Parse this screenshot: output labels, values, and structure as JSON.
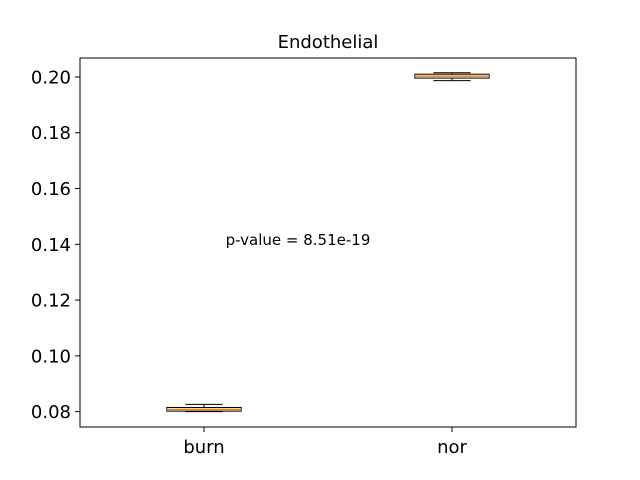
{
  "chart_data": {
    "type": "box",
    "title": "Endothelial",
    "xlabel": "",
    "ylabel": "",
    "categories": [
      "burn",
      "nor"
    ],
    "ylim": [
      0.0745,
      0.2068
    ],
    "yticks": [
      0.08,
      0.1,
      0.12,
      0.14,
      0.16,
      0.18,
      0.2
    ],
    "ytick_labels": [
      "0.08",
      "0.10",
      "0.12",
      "0.14",
      "0.16",
      "0.18",
      "0.20"
    ],
    "boxes": [
      {
        "category": "burn",
        "whisker_low": 0.08,
        "q1": 0.0802,
        "median": 0.0808,
        "q3": 0.0815,
        "whisker_high": 0.0826
      },
      {
        "category": "nor",
        "whisker_low": 0.1987,
        "q1": 0.1996,
        "median": 0.2003,
        "q3": 0.201,
        "whisker_high": 0.2015
      }
    ],
    "annotation": {
      "text": "p-value = 8.51e-19",
      "y": 0.1415
    },
    "grid": false,
    "legend": false,
    "colors": {
      "box_fill": "#ffffff",
      "median": "#ff7f0e",
      "line": "#000000"
    }
  }
}
